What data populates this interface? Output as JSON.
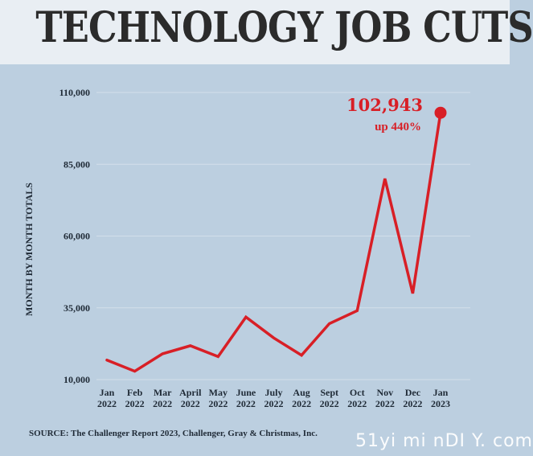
{
  "title": "TECHNOLOGY JOB CUTS",
  "source": "SOURCE: The Challenger Report 2023, Challenger, Gray & Christmas, Inc.",
  "watermark": "51yi mi nDI Y. com",
  "colors": {
    "background": "#bccfe0",
    "header": "#e9eef3",
    "line": "#d81f26",
    "gridline": "#d3dfea",
    "text": "#1f2a36"
  },
  "chart_data": {
    "type": "line",
    "title": "TECHNOLOGY JOB CUTS",
    "xlabel": "",
    "ylabel": "MONTH BY MONTH TOTALS",
    "categories": [
      [
        "Jan",
        "2022"
      ],
      [
        "Feb",
        "2022"
      ],
      [
        "Mar",
        "2022"
      ],
      [
        "April",
        "2022"
      ],
      [
        "May",
        "2022"
      ],
      [
        "June",
        "2022"
      ],
      [
        "July",
        "2022"
      ],
      [
        "Aug",
        "2022"
      ],
      [
        "Sept",
        "2022"
      ],
      [
        "Oct",
        "2022"
      ],
      [
        "Nov",
        "2022"
      ],
      [
        "Dec",
        "2022"
      ],
      [
        "Jan",
        "2023"
      ]
    ],
    "series": [
      {
        "values": [
          16800,
          12900,
          19000,
          21800,
          18000,
          31800,
          24500,
          18500,
          29500,
          34000,
          80000,
          40000,
          102943
        ]
      }
    ],
    "ylim": [
      10000,
      110000
    ],
    "yticks": [
      10000,
      35000,
      60000,
      85000,
      110000
    ],
    "ytick_labels": [
      "10,000",
      "35,000",
      "60,000",
      "85,000",
      "110,000"
    ],
    "grid": true,
    "annotation": {
      "value_label": "102,943",
      "change_label": "up 440%",
      "point_index": 12
    }
  }
}
